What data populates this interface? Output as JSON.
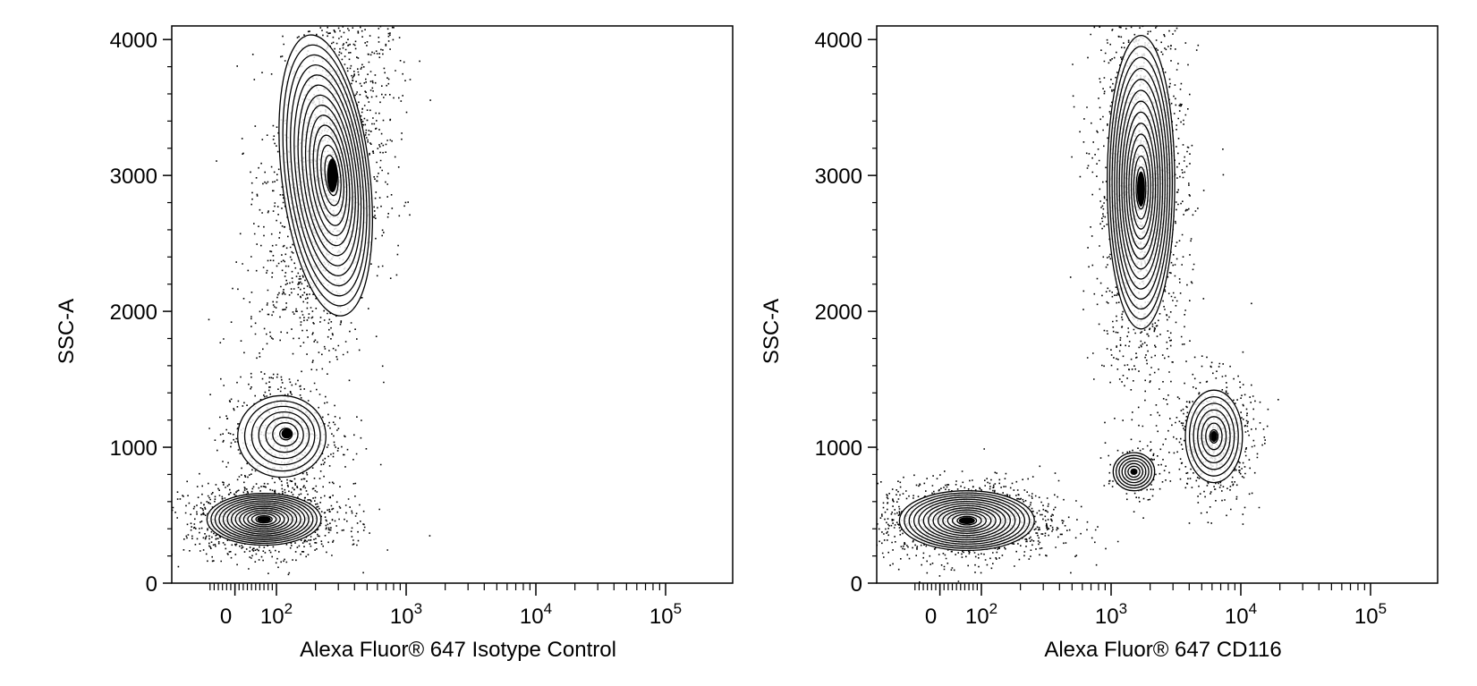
{
  "chart_data": [
    {
      "type": "scatter",
      "title": "",
      "xlabel": "Alexa Fluor® 647 Isotype Control",
      "ylabel": "SSC-A",
      "x_scale": "biexponential",
      "x_ticks": [
        {
          "value": 0,
          "label": "0"
        },
        {
          "value": 100,
          "label": "10",
          "exp": "2"
        },
        {
          "value": 1000,
          "label": "10",
          "exp": "3"
        },
        {
          "value": 10000,
          "label": "10",
          "exp": "4"
        },
        {
          "value": 100000,
          "label": "10",
          "exp": "5"
        }
      ],
      "y_ticks": [
        {
          "value": 0,
          "label": "0"
        },
        {
          "value": 1000,
          "label": "1000"
        },
        {
          "value": 2000,
          "label": "2000"
        },
        {
          "value": 3000,
          "label": "3000"
        },
        {
          "value": 4000,
          "label": "4000"
        }
      ],
      "ylim": [
        0,
        4100
      ],
      "grid": false,
      "populations": [
        {
          "x_center": 240,
          "y_center": 3000,
          "x_spread": 0.17,
          "y_spread": 520,
          "tilt": 0.55,
          "count": 1900,
          "peak": [
            270,
            3000
          ]
        },
        {
          "x_center": 110,
          "y_center": 1080,
          "x_spread": 0.17,
          "y_spread": 150,
          "tilt": 0.0,
          "count": 520,
          "peak": [
            120,
            1100
          ]
        },
        {
          "x_center": 70,
          "y_center": 470,
          "x_spread": 0.22,
          "y_spread": 95,
          "tilt": 0.0,
          "count": 1300,
          "peak": [
            70,
            470
          ]
        }
      ]
    },
    {
      "type": "scatter",
      "title": "",
      "xlabel": "Alexa Fluor® 647 CD116",
      "ylabel": "SSC-A",
      "x_scale": "biexponential",
      "x_ticks": [
        {
          "value": 0,
          "label": "0"
        },
        {
          "value": 100,
          "label": "10",
          "exp": "2"
        },
        {
          "value": 1000,
          "label": "10",
          "exp": "3"
        },
        {
          "value": 10000,
          "label": "10",
          "exp": "4"
        },
        {
          "value": 100000,
          "label": "10",
          "exp": "5"
        }
      ],
      "y_ticks": [
        {
          "value": 0,
          "label": "0"
        },
        {
          "value": 1000,
          "label": "1000"
        },
        {
          "value": 2000,
          "label": "2000"
        },
        {
          "value": 3000,
          "label": "3000"
        },
        {
          "value": 4000,
          "label": "4000"
        }
      ],
      "ylim": [
        0,
        4100
      ],
      "grid": false,
      "populations": [
        {
          "x_center": 1700,
          "y_center": 2950,
          "x_spread": 0.13,
          "y_spread": 540,
          "tilt": 0.0,
          "count": 1700,
          "peak": [
            1700,
            2900
          ]
        },
        {
          "x_center": 6200,
          "y_center": 1080,
          "x_spread": 0.11,
          "y_spread": 170,
          "tilt": 0.0,
          "count": 650,
          "peak": [
            6200,
            1080
          ]
        },
        {
          "x_center": 1500,
          "y_center": 820,
          "x_spread": 0.08,
          "y_spread": 70,
          "tilt": 0.0,
          "count": 150,
          "peak": [
            1500,
            820
          ]
        },
        {
          "x_center": 65,
          "y_center": 460,
          "x_spread": 0.26,
          "y_spread": 110,
          "tilt": 0.0,
          "count": 1400,
          "peak": [
            65,
            460
          ]
        }
      ]
    }
  ]
}
